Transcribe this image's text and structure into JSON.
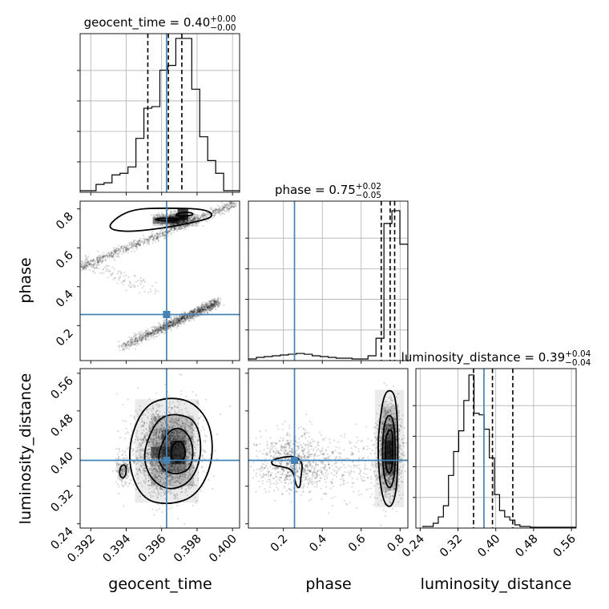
{
  "chart_data": {
    "type": "corner",
    "parameters": [
      {
        "name": "geocent_time",
        "label": "geocent_time",
        "range": [
          0.3914,
          0.4004
        ],
        "ticks": [
          0.392,
          0.394,
          0.396,
          0.398,
          0.4
        ],
        "tick_labels": [
          "0.392",
          "0.394",
          "0.396",
          "0.398",
          "0.400"
        ],
        "median": "0.40",
        "plus": "+0.00",
        "minus": "−0.00",
        "quantiles": [
          0.39522,
          0.39638,
          0.39714
        ],
        "truth": 0.39628,
        "histogram": {
          "edges_start": 0.3914,
          "bin_width": 0.00045,
          "counts": [
            0.01,
            0.01,
            0.05,
            0.06,
            0.11,
            0.12,
            0.16,
            0.34,
            0.53,
            0.54,
            0.77,
            0.8,
            0.97,
            0.97,
            0.65,
            0.35,
            0.2,
            0.12,
            0.01,
            0.01
          ]
        }
      },
      {
        "name": "phase",
        "label": "phase",
        "range": [
          0.02,
          0.84
        ],
        "ticks": [
          0.2,
          0.4,
          0.6,
          0.8
        ],
        "tick_labels": [
          "0.2",
          "0.4",
          "0.6",
          "0.8"
        ],
        "median": "0.75",
        "plus": "+0.02",
        "minus": "−0.05",
        "quantiles": [
          0.703,
          0.749,
          0.772
        ],
        "truth": 0.257,
        "histogram": {
          "edges_start": 0.02,
          "bin_width": 0.041,
          "counts": [
            0.01,
            0.02,
            0.025,
            0.03,
            0.035,
            0.04,
            0.045,
            0.04,
            0.03,
            0.025,
            0.02,
            0.015,
            0.015,
            0.01,
            0.01,
            0.03,
            0.14,
            0.86,
            0.94,
            0.73
          ]
        }
      },
      {
        "name": "luminosity_distance",
        "label": "luminosity_distance",
        "range": [
          0.231,
          0.57
        ],
        "ticks": [
          0.24,
          0.32,
          0.4,
          0.48,
          0.56
        ],
        "tick_labels": [
          "0.24",
          "0.32",
          "0.40",
          "0.48",
          "0.56"
        ],
        "median": "0.39",
        "plus": "+0.04",
        "minus": "−0.04",
        "quantiles": [
          0.353,
          0.393,
          0.436
        ],
        "truth": 0.375,
        "histogram": {
          "edges_start": 0.246,
          "bin_width": 0.0108,
          "counts": [
            0.01,
            0.01,
            0.03,
            0.07,
            0.14,
            0.33,
            0.48,
            0.61,
            0.8,
            0.96,
            0.72,
            0.71,
            0.62,
            0.44,
            0.21,
            0.11,
            0.07,
            0.05,
            0.02,
            0.01,
            0.01,
            0.005,
            0.005,
            0.005,
            0.005,
            0.005,
            0.005,
            0.005,
            0.005,
            0.005
          ]
        }
      }
    ],
    "truth_color": "#4682b4",
    "grid": true
  }
}
